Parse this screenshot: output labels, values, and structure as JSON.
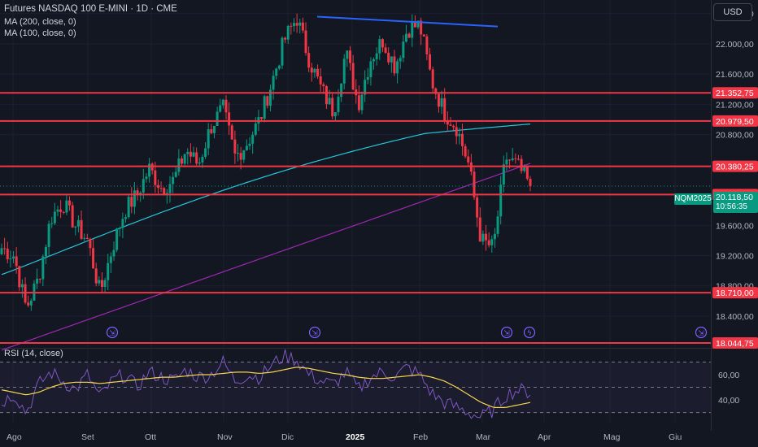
{
  "legend": {
    "title": "Futures NASDAQ 100 E-MINI · 1D · CME",
    "ma200": "MA (200, close, 0)",
    "ma100": "MA (100, close, 0)",
    "rsi": "RSI (14, close)"
  },
  "currency": "USD",
  "ticker": "NQM2025",
  "last_price": "20.118,50",
  "countdown": "10:56:35",
  "colors": {
    "background": "#131722",
    "up": "#089981",
    "down": "#f23645",
    "ma100": "#26c6da",
    "ma200": "#9c27b0",
    "trendline": "#2962ff",
    "rsi": "#7e57c2",
    "rsi_ma": "#f7d64a"
  },
  "chart_data": {
    "type": "candlestick",
    "y_axis_ticks": [
      "22.400,00",
      "22.000,00",
      "21.600,00",
      "21.200,00",
      "20.800,00",
      "19.600,00",
      "19.200,00",
      "18.800,00",
      "18.400,00"
    ],
    "y_axis_tick_values": [
      22400,
      22000,
      21600,
      21200,
      20800,
      19600,
      19200,
      18800,
      18400
    ],
    "ylim": [
      17980,
      22580
    ],
    "x_axis_labels": [
      "Ago",
      "Set",
      "Ott",
      "Nov",
      "Dic",
      "2025",
      "Feb",
      "Mar",
      "Apr",
      "Mag",
      "Giu"
    ],
    "horizontal_levels": [
      {
        "value": 21352.75,
        "label": "21.352,75"
      },
      {
        "value": 20979.5,
        "label": "20.979,50"
      },
      {
        "value": 20380.25,
        "label": "20.380,25"
      },
      {
        "value": 20007.75,
        "label": "20.007,75"
      },
      {
        "value": 18710.0,
        "label": "18.710,00"
      },
      {
        "value": 18044.75,
        "label": "18.044,75"
      }
    ],
    "trendline": {
      "from": {
        "value": 22360
      },
      "to": {
        "value": 22230
      }
    },
    "moving_averages": [
      {
        "name": "MA (100, close, 0)",
        "values_start": 18950,
        "values_end": 21120
      },
      {
        "name": "MA (200, close, 0)",
        "values_start": 17950,
        "values_end": 20420
      }
    ],
    "price_path": [
      19300,
      19200,
      18500,
      18900,
      19700,
      19900,
      19600,
      19400,
      18700,
      19300,
      19800,
      20000,
      20350,
      20100,
      20200,
      20600,
      20400,
      20900,
      21150,
      20500,
      20700,
      21000,
      21500,
      22050,
      22350,
      21800,
      21400,
      21100,
      21900,
      21200,
      21800,
      22050,
      21700,
      22200,
      22250,
      21500,
      21100,
      20900,
      20400,
      19400,
      19300,
      20500,
      20380,
      20118
    ],
    "rsi": {
      "ticks": [
        "60,00",
        "40,00"
      ],
      "tick_values": [
        60,
        40
      ],
      "ylim": [
        22,
        80
      ],
      "bands": [
        70,
        50,
        30
      ],
      "values": [
        38,
        45,
        30,
        52,
        62,
        55,
        48,
        60,
        42,
        55,
        60,
        50,
        62,
        58,
        55,
        64,
        58,
        60,
        70,
        55,
        60,
        58,
        68,
        75,
        72,
        60,
        55,
        52,
        62,
        48,
        58,
        62,
        58,
        66,
        60,
        45,
        38,
        34,
        30,
        26,
        32,
        44,
        48,
        46
      ],
      "ma_values": [
        48,
        46,
        44,
        46,
        50,
        53,
        54,
        54,
        53,
        54,
        55,
        56,
        57,
        58,
        58,
        59,
        60,
        60,
        61,
        62,
        62,
        61,
        62,
        64,
        66,
        65,
        63,
        61,
        60,
        58,
        57,
        57,
        58,
        59,
        60,
        58,
        55,
        50,
        44,
        38,
        34,
        34,
        36,
        38
      ]
    }
  }
}
